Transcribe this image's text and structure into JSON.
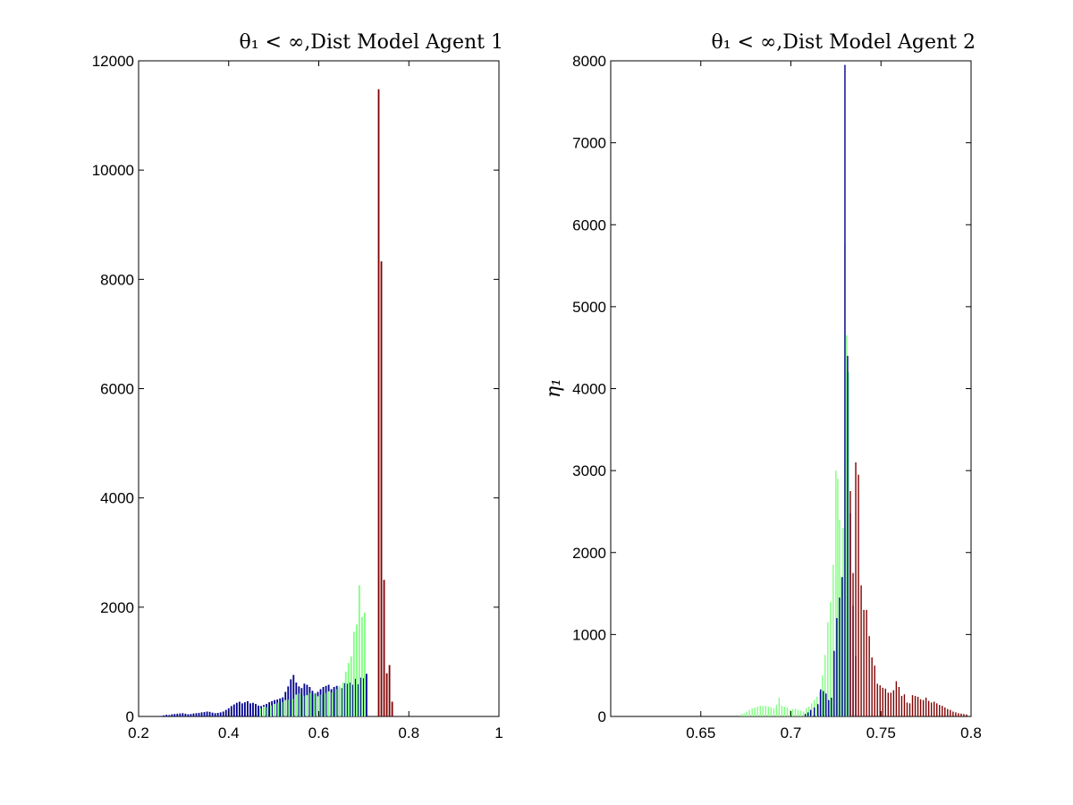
{
  "chart_data": [
    {
      "type": "bar",
      "title": "θ₁ < ∞,Dist Model Agent 1",
      "xlabel": "",
      "ylabel": "",
      "xlim": [
        0.2,
        1.0
      ],
      "ylim": [
        0,
        12000
      ],
      "xticks": [
        "0.2",
        "0.4",
        "0.6",
        "0.8",
        "1"
      ],
      "yticks": [
        "0",
        "2000",
        "4000",
        "6000",
        "8000",
        "10000",
        "12000"
      ],
      "grid": false,
      "colors": {
        "blue": "#00008f",
        "green": "#80ff80",
        "red": "#800000"
      },
      "series": [
        {
          "color": "blue",
          "x": [
            0.25,
            0.256,
            0.262,
            0.268,
            0.274,
            0.28,
            0.286,
            0.292,
            0.298,
            0.304,
            0.31,
            0.316,
            0.322,
            0.328,
            0.334,
            0.34,
            0.346,
            0.352,
            0.358,
            0.364,
            0.37,
            0.376,
            0.382,
            0.388,
            0.394,
            0.4,
            0.406,
            0.412,
            0.418,
            0.424,
            0.43,
            0.436,
            0.442,
            0.448,
            0.454,
            0.46,
            0.466,
            0.472,
            0.478,
            0.484,
            0.49,
            0.496,
            0.502,
            0.508,
            0.514,
            0.52,
            0.526,
            0.532,
            0.538,
            0.544,
            0.55,
            0.556,
            0.562,
            0.568,
            0.574,
            0.58,
            0.586,
            0.592,
            0.598,
            0.604,
            0.61,
            0.616,
            0.622,
            0.628,
            0.634,
            0.64,
            0.646,
            0.652,
            0.658,
            0.664,
            0.67,
            0.676,
            0.682,
            0.688,
            0.694,
            0.7,
            0.706
          ],
          "values": [
            10,
            20,
            30,
            25,
            40,
            45,
            50,
            55,
            60,
            50,
            40,
            45,
            55,
            60,
            65,
            75,
            80,
            90,
            85,
            70,
            60,
            65,
            75,
            90,
            120,
            150,
            190,
            220,
            250,
            270,
            240,
            260,
            280,
            240,
            250,
            230,
            200,
            190,
            210,
            230,
            260,
            280,
            300,
            310,
            330,
            350,
            450,
            550,
            680,
            760,
            620,
            550,
            520,
            600,
            580,
            540,
            470,
            420,
            450,
            500,
            540,
            560,
            580,
            500,
            540,
            560,
            530,
            520,
            610,
            600,
            620,
            580,
            690,
            590,
            710,
            700,
            780
          ]
        },
        {
          "color": "green",
          "x": [
            0.47,
            0.478,
            0.486,
            0.494,
            0.502,
            0.51,
            0.518,
            0.526,
            0.534,
            0.542,
            0.55,
            0.558,
            0.566,
            0.574,
            0.582,
            0.59,
            0.598,
            0.606,
            0.614,
            0.622,
            0.63,
            0.638,
            0.646,
            0.654,
            0.66,
            0.666,
            0.672,
            0.678,
            0.684,
            0.69,
            0.696,
            0.702
          ],
          "values": [
            150,
            180,
            170,
            200,
            230,
            250,
            260,
            300,
            310,
            320,
            400,
            420,
            380,
            390,
            430,
            410,
            370,
            400,
            430,
            460,
            440,
            500,
            560,
            620,
            820,
            980,
            1100,
            1550,
            1680,
            2400,
            1820,
            1900
          ]
        },
        {
          "color": "red",
          "x": [
            0.733,
            0.739,
            0.745,
            0.751,
            0.757,
            0.763
          ],
          "values": [
            11480,
            8330,
            2500,
            790,
            940,
            270
          ]
        }
      ]
    },
    {
      "type": "bar",
      "title": "θ₁ < ∞,Dist Model Agent 2",
      "xlabel": "",
      "ylabel": "η₁",
      "xlim": [
        0.6,
        0.8
      ],
      "ylim": [
        0,
        8000
      ],
      "xticks": [
        "0.65",
        "0.7",
        "0.75",
        "0.8"
      ],
      "yticks": [
        "0",
        "1000",
        "2000",
        "3000",
        "4000",
        "5000",
        "6000",
        "7000",
        "8000"
      ],
      "grid": false,
      "colors": {
        "blue": "#00008f",
        "green": "#80ff80",
        "red": "#800000"
      },
      "series": [
        {
          "color": "green",
          "x": [
            0.6725,
            0.674,
            0.6755,
            0.677,
            0.6785,
            0.68,
            0.6815,
            0.683,
            0.6845,
            0.686,
            0.6875,
            0.689,
            0.6905,
            0.692,
            0.6935,
            0.695,
            0.6965,
            0.698,
            0.6995,
            0.701,
            0.7025,
            0.704,
            0.7055,
            0.707,
            0.7085,
            0.71,
            0.7115,
            0.713,
            0.7145,
            0.716,
            0.7175,
            0.719,
            0.7205,
            0.722,
            0.7235,
            0.725,
            0.726,
            0.727,
            0.728,
            0.729,
            0.73,
            0.731,
            0.732
          ],
          "values": [
            30,
            40,
            60,
            80,
            100,
            110,
            120,
            130,
            125,
            130,
            120,
            110,
            100,
            140,
            230,
            130,
            120,
            110,
            80,
            90,
            95,
            80,
            70,
            60,
            100,
            120,
            160,
            200,
            240,
            300,
            500,
            750,
            1150,
            1400,
            1850,
            3000,
            2900,
            2400,
            1700,
            2300,
            5780,
            4650,
            4200
          ]
        },
        {
          "color": "blue",
          "x": [
            0.708,
            0.7095,
            0.711,
            0.713,
            0.715,
            0.7165,
            0.718,
            0.7195,
            0.721,
            0.7225,
            0.724,
            0.7255,
            0.727,
            0.7285,
            0.73,
            0.7315,
            0.733,
            0.7345,
            0.736
          ],
          "values": [
            30,
            50,
            80,
            110,
            150,
            330,
            310,
            280,
            200,
            230,
            800,
            1200,
            1450,
            1700,
            7950,
            4400,
            2480,
            1350,
            740
          ]
        },
        {
          "color": "red",
          "x": [
            0.733,
            0.7345,
            0.736,
            0.7375,
            0.739,
            0.7405,
            0.742,
            0.7435,
            0.745,
            0.7465,
            0.748,
            0.7495,
            0.751,
            0.7525,
            0.754,
            0.7555,
            0.757,
            0.7585,
            0.76,
            0.7615,
            0.763,
            0.7645,
            0.766,
            0.7675,
            0.769,
            0.7705,
            0.772,
            0.7735,
            0.775,
            0.7765,
            0.778,
            0.7795,
            0.781,
            0.7825,
            0.784,
            0.7855,
            0.787,
            0.7885,
            0.79,
            0.7915,
            0.793,
            0.7945,
            0.796,
            0.7975
          ],
          "values": [
            2750,
            1750,
            3100,
            2950,
            1600,
            1300,
            1300,
            980,
            720,
            620,
            400,
            380,
            350,
            340,
            290,
            290,
            320,
            430,
            360,
            250,
            270,
            170,
            160,
            260,
            250,
            240,
            210,
            200,
            230,
            190,
            170,
            180,
            160,
            140,
            130,
            110,
            90,
            80,
            60,
            50,
            40,
            35,
            30,
            25
          ]
        }
      ]
    }
  ]
}
